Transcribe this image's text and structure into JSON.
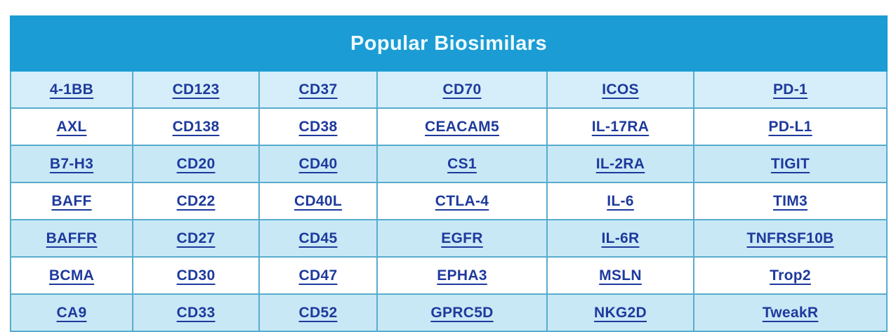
{
  "table": {
    "title": "Popular Biosimilars",
    "rows": [
      [
        "4-1BB",
        "CD123",
        "CD37",
        "CD70",
        "ICOS",
        "PD-1"
      ],
      [
        "AXL",
        "CD138",
        "CD38",
        "CEACAM5",
        "IL-17RA",
        "PD-L1"
      ],
      [
        "B7-H3",
        "CD20",
        "CD40",
        "CS1",
        "IL-2RA",
        "TIGIT"
      ],
      [
        "BAFF",
        "CD22",
        "CD40L",
        "CTLA-4",
        "IL-6",
        "TIM3"
      ],
      [
        "BAFFR",
        "CD27",
        "CD45",
        "EGFR",
        "IL-6R",
        "TNFRSF10B"
      ],
      [
        "BCMA",
        "CD30",
        "CD47",
        "EPHA3",
        "MSLN",
        "Trop2"
      ],
      [
        "CA9",
        "CD33",
        "CD52",
        "GPRC5D",
        "NKG2D",
        "TweakR"
      ]
    ],
    "colors": {
      "header_bg": "#1b9cd4",
      "title_text": "#eefaff",
      "link_text": "#1e3a9c",
      "row_highlight": "#c9e8f6",
      "row_first_highlight": "#d5eefa",
      "row_plain": "#ffffff",
      "grid_border": "#58accd"
    }
  }
}
